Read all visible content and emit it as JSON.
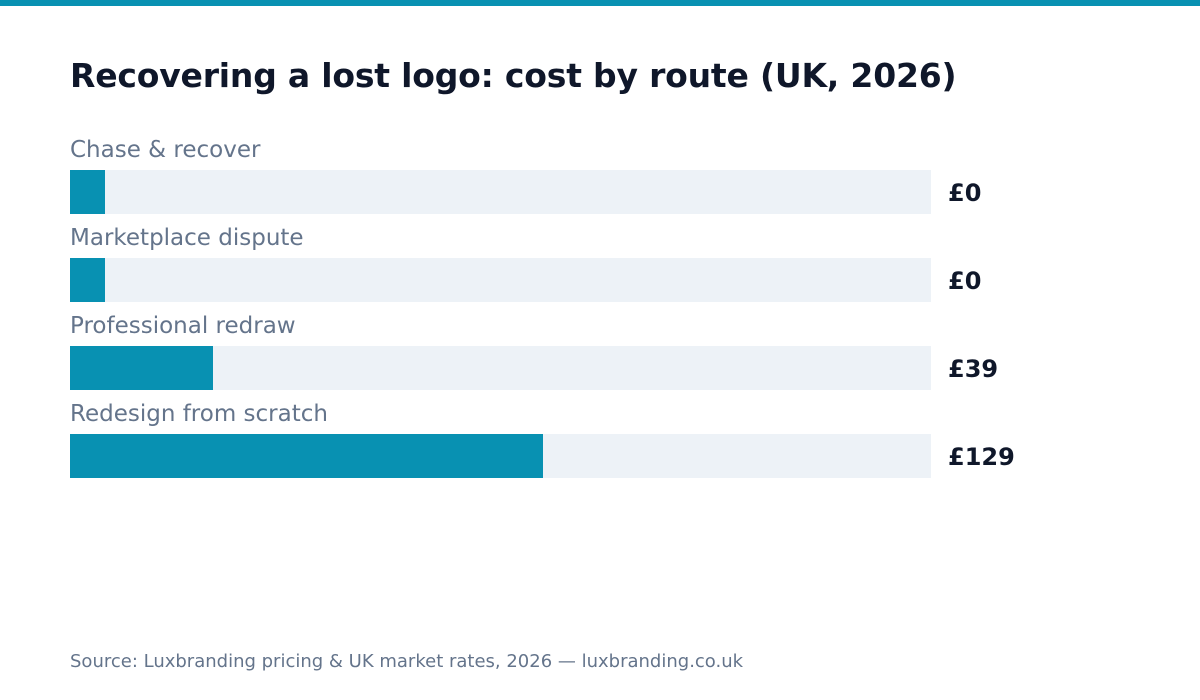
{
  "colors": {
    "accent": "#0891b2",
    "track": "#edf2f7",
    "title": "#0f172a",
    "muted": "#64748b"
  },
  "source": "Source: Luxbranding pricing & UK market rates, 2026 — luxbranding.co.uk",
  "chart_data": {
    "type": "bar",
    "orientation": "horizontal",
    "title": "Recovering a lost logo: cost by route (UK, 2026)",
    "xlabel": "",
    "ylabel": "",
    "xlim": [
      0,
      235
    ],
    "grid": false,
    "categories": [
      "Chase & recover",
      "Marketplace dispute",
      "Professional redraw",
      "Redesign from scratch"
    ],
    "values": [
      0,
      0,
      39,
      129
    ],
    "value_labels": [
      "£0",
      "£0",
      "£39",
      "£129"
    ],
    "minimum_visible_fill": 8
  }
}
